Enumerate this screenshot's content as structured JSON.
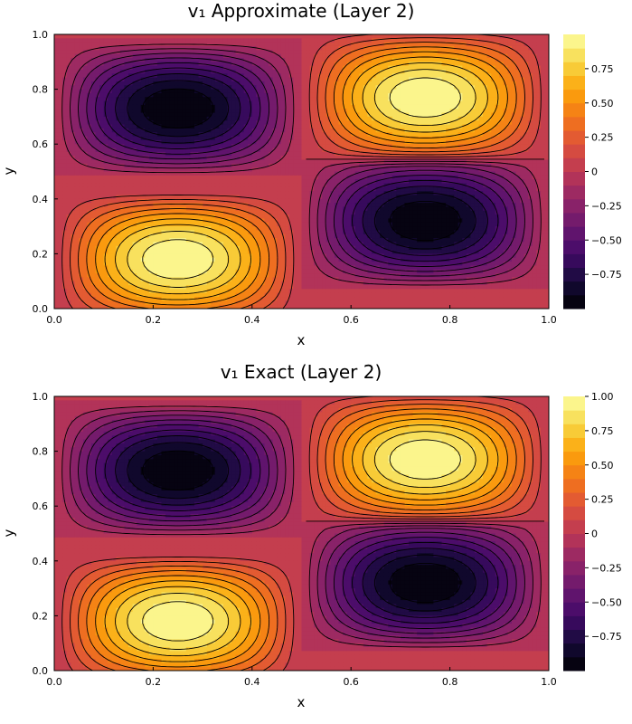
{
  "chart_data": [
    {
      "type": "heatmap",
      "subtype": "filled-contour",
      "title": "v₁ Approximate (Layer 2)",
      "xlabel": "x",
      "ylabel": "y",
      "xlim": [
        0.0,
        1.0
      ],
      "ylim": [
        0.0,
        1.0
      ],
      "x_ticks": [
        "0.0",
        "0.2",
        "0.4",
        "0.6",
        "0.8",
        "1.0"
      ],
      "y_ticks": [
        "0.0",
        "0.2",
        "0.4",
        "0.6",
        "0.8",
        "1.0"
      ],
      "colorbar": {
        "colormap": "inferno",
        "range": [
          -1.0,
          1.0
        ],
        "levels": 20,
        "tick_values": [
          0.75,
          0.5,
          0.25,
          0,
          -0.25,
          -0.5,
          -0.75
        ],
        "tick_labels": [
          "0.75",
          "0.50",
          "0.25",
          "0",
          "−0.25",
          "−0.50",
          "−0.75"
        ]
      },
      "extrema": [
        {
          "x": 0.25,
          "y": 0.18,
          "value": 1.0
        },
        {
          "x": 0.75,
          "y": 0.77,
          "value": 1.0
        },
        {
          "x": 0.25,
          "y": 0.73,
          "value": -1.0
        },
        {
          "x": 0.75,
          "y": 0.32,
          "value": -1.0
        }
      ],
      "grid": false
    },
    {
      "type": "heatmap",
      "subtype": "filled-contour",
      "title": "v₁ Exact (Layer 2)",
      "xlabel": "x",
      "ylabel": "y",
      "xlim": [
        0.0,
        1.0
      ],
      "ylim": [
        0.0,
        1.0
      ],
      "x_ticks": [
        "0.0",
        "0.2",
        "0.4",
        "0.6",
        "0.8",
        "1.0"
      ],
      "y_ticks": [
        "0.0",
        "0.2",
        "0.4",
        "0.6",
        "0.8",
        "1.0"
      ],
      "colorbar": {
        "colormap": "inferno",
        "range": [
          -1.0,
          1.0
        ],
        "levels": 20,
        "tick_values": [
          1.0,
          0.75,
          0.5,
          0.25,
          0,
          -0.25,
          -0.5,
          -0.75
        ],
        "tick_labels": [
          "1.00",
          "0.75",
          "0.50",
          "0.25",
          "0",
          "−0.25",
          "−0.50",
          "−0.75"
        ]
      },
      "extrema": [
        {
          "x": 0.25,
          "y": 0.18,
          "value": 1.0
        },
        {
          "x": 0.75,
          "y": 0.77,
          "value": 1.0
        },
        {
          "x": 0.25,
          "y": 0.73,
          "value": -1.0
        },
        {
          "x": 0.75,
          "y": 0.32,
          "value": -1.0
        }
      ],
      "grid": false
    }
  ]
}
